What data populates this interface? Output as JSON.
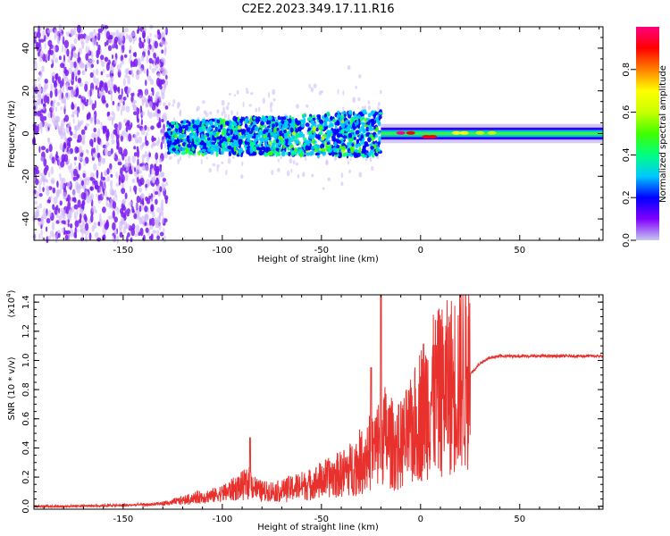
{
  "title": "C2E2.2023.349.17.11.R16",
  "colors": {
    "snr_line": "#e8302c",
    "spectrogram_noise": "#7a1cf0",
    "colormap": [
      "#c8c8f0",
      "#8000ff",
      "#0000ff",
      "#00c8ff",
      "#00ff80",
      "#40ff00",
      "#c8ff00",
      "#ffff00",
      "#ff8000",
      "#ff0000",
      "#ff0080"
    ]
  },
  "chart_data": [
    {
      "type": "heatmap",
      "name": "spectrogram",
      "xlabel": "Height of straight line (km)",
      "ylabel": "Frequency (Hz)",
      "xlim": [
        -195,
        92
      ],
      "ylim": [
        -50,
        50
      ],
      "xticks": [
        -150,
        -100,
        -50,
        0,
        50
      ],
      "yticks": [
        -40,
        -20,
        0,
        20,
        40
      ],
      "colorbar": {
        "label": "Normalized spectral amplitude",
        "range": [
          0.0,
          1.0
        ],
        "ticks": [
          "0.0",
          "0.2",
          "0.4",
          "0.6",
          "0.8"
        ]
      },
      "regions": [
        {
          "x": [
            -195,
            -128
          ],
          "f": [
            -50,
            50
          ],
          "amplitude": [
            0.0,
            0.15
          ],
          "description": "broadband noise"
        },
        {
          "x": [
            -128,
            -20
          ],
          "f": [
            -12,
            12
          ],
          "amplitude": [
            0.1,
            0.45
          ],
          "description": "scattered signal"
        },
        {
          "x": [
            -20,
            92
          ],
          "f": [
            -3,
            3
          ],
          "amplitude": [
            0.3,
            0.95
          ],
          "description": "carrier line"
        }
      ]
    },
    {
      "type": "line",
      "name": "snr",
      "xlabel": "Height of straight line (km)",
      "ylabel": "SNR (10 * v/v)",
      "yscale_label": "(x10",
      "yscale_exp": "4",
      "xlim": [
        -195,
        92
      ],
      "ylim": [
        -0.02,
        1.45
      ],
      "xticks": [
        -150,
        -100,
        -50,
        0,
        50
      ],
      "yticks": [
        "0.0",
        "0.2",
        "0.4",
        "0.6",
        "0.8",
        "1.0",
        "1.2",
        "1.4"
      ],
      "series": [
        {
          "x": [
            -195,
            -180,
            -165,
            -150,
            -135,
            -125,
            -118,
            -112,
            -105,
            -100,
            -95,
            -90,
            -86,
            -82,
            -78,
            -72,
            -66,
            -60,
            -55,
            -50,
            -45,
            -40,
            -35,
            -30,
            -26,
            -22,
            -20,
            -18,
            -15,
            -12,
            -8,
            -5,
            -2,
            0,
            3,
            6,
            9,
            12,
            15,
            18,
            22,
            26,
            30,
            35,
            40,
            50,
            60,
            70,
            80,
            92
          ],
          "y": [
            0.0,
            0.0,
            0.005,
            0.01,
            0.02,
            0.04,
            0.06,
            0.08,
            0.09,
            0.11,
            0.14,
            0.17,
            0.2,
            0.13,
            0.12,
            0.12,
            0.14,
            0.16,
            0.17,
            0.2,
            0.22,
            0.24,
            0.28,
            0.33,
            0.38,
            0.42,
            0.55,
            0.5,
            0.45,
            0.4,
            0.46,
            0.5,
            0.58,
            0.65,
            0.7,
            0.74,
            0.76,
            0.78,
            0.8,
            0.82,
            0.87,
            0.92,
            0.98,
            1.02,
            1.03,
            1.03,
            1.03,
            1.03,
            1.03,
            1.03
          ]
        }
      ],
      "peaks": [
        {
          "x": -86,
          "y": 0.47
        },
        {
          "x": -20,
          "y": 1.45
        },
        {
          "x": -25,
          "y": 0.95
        }
      ]
    }
  ]
}
